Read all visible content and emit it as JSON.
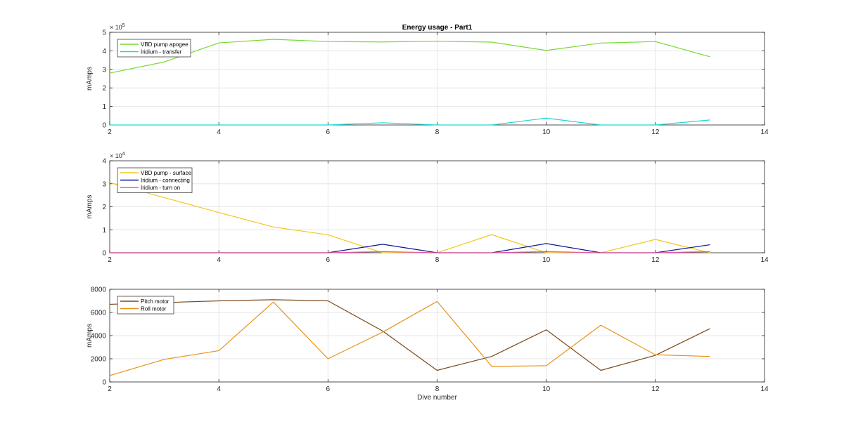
{
  "chart_data": [
    {
      "type": "line",
      "title": "Energy usage - Part1",
      "xlabel": "",
      "ylabel": "mAmps",
      "xlim": [
        2,
        14
      ],
      "ylim": [
        0,
        500000
      ],
      "xticks": [
        2,
        4,
        6,
        8,
        10,
        12,
        14
      ],
      "yticks": [
        0,
        100000,
        200000,
        300000,
        400000,
        500000
      ],
      "ytick_labels": [
        "0",
        "1",
        "2",
        "3",
        "4",
        "5"
      ],
      "y_exponent": {
        "base": "× 10",
        "power": "5"
      },
      "grid": true,
      "legend_position": "top-left",
      "x": [
        2,
        3,
        4,
        5,
        6,
        7,
        8,
        9,
        10,
        11,
        12,
        13
      ],
      "series": [
        {
          "name": "VBD pump apogee",
          "color": "#77d934",
          "values": [
            280000,
            340000,
            443000,
            462000,
            450000,
            448000,
            452000,
            447000,
            402000,
            442000,
            450000,
            368000
          ]
        },
        {
          "name": "Iridium - transfer",
          "color": "#1fd6d6",
          "values": [
            0,
            0,
            0,
            0,
            0,
            12000,
            0,
            0,
            37000,
            0,
            0,
            27000
          ]
        }
      ]
    },
    {
      "type": "line",
      "title": "",
      "xlabel": "",
      "ylabel": "mAmps",
      "xlim": [
        2,
        14
      ],
      "ylim": [
        0,
        40000
      ],
      "xticks": [
        2,
        4,
        6,
        8,
        10,
        12,
        14
      ],
      "yticks": [
        0,
        10000,
        20000,
        30000,
        40000
      ],
      "ytick_labels": [
        "0",
        "1",
        "2",
        "3",
        "4"
      ],
      "y_exponent": {
        "base": "× 10",
        "power": "4"
      },
      "grid": true,
      "legend_position": "top-left",
      "x": [
        2,
        3,
        4,
        5,
        6,
        7,
        8,
        9,
        10,
        11,
        12,
        13
      ],
      "series": [
        {
          "name": "VBD pump - surface",
          "color": "#f2c71f",
          "values": [
            30500,
            24000,
            17500,
            11200,
            7800,
            0,
            0,
            7900,
            0,
            0,
            5800,
            0
          ]
        },
        {
          "name": "Iridium - connecting",
          "color": "#0b1796",
          "values": [
            0,
            0,
            0,
            0,
            0,
            3700,
            0,
            0,
            4000,
            0,
            0,
            3500
          ]
        },
        {
          "name": "Iridium - turn on",
          "color": "#e05a9c",
          "values": [
            0,
            0,
            0,
            0,
            0,
            500,
            0,
            0,
            500,
            0,
            0,
            500
          ]
        }
      ]
    },
    {
      "type": "line",
      "title": "",
      "xlabel": "Dive number",
      "ylabel": "mAmps",
      "xlim": [
        2,
        14
      ],
      "ylim": [
        0,
        8000
      ],
      "xticks": [
        2,
        4,
        6,
        8,
        10,
        12,
        14
      ],
      "yticks": [
        0,
        2000,
        4000,
        6000,
        8000
      ],
      "ytick_labels": [
        "0",
        "2000",
        "4000",
        "6000",
        "8000"
      ],
      "grid": true,
      "legend_position": "top-left",
      "x": [
        2,
        3,
        4,
        5,
        6,
        7,
        8,
        9,
        10,
        11,
        12,
        13
      ],
      "series": [
        {
          "name": "Pitch motor",
          "color": "#7a4a1e",
          "values": [
            6700,
            6850,
            7000,
            7100,
            7000,
            4400,
            1000,
            2200,
            4500,
            1000,
            2300,
            4600
          ]
        },
        {
          "name": "Roll motor",
          "color": "#e8921c",
          "values": [
            550,
            1950,
            2700,
            6900,
            2000,
            4300,
            6950,
            1350,
            1400,
            4900,
            2350,
            2200
          ]
        }
      ]
    }
  ]
}
